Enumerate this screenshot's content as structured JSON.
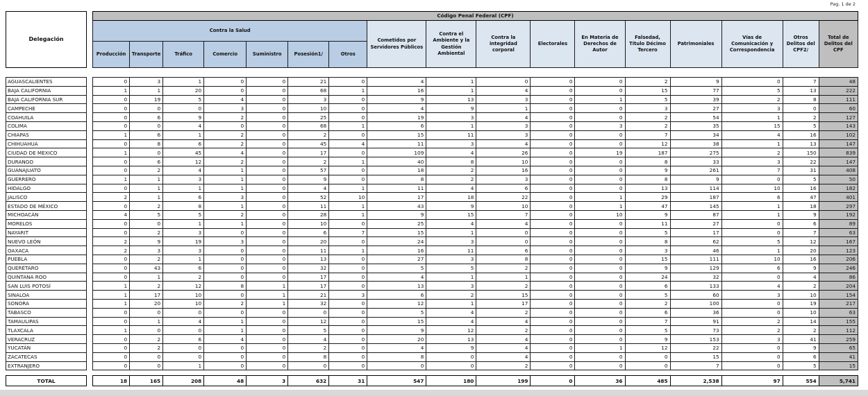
{
  "page": {
    "pagination": "Pag. 1 de 2"
  },
  "colors": {
    "title_band_gray": "#bfbfbf",
    "salud_header_blue": "#b9cde4",
    "other_header_light_blue": "#dce6f1",
    "total_column_gray": "#c0c0c0",
    "bottom_strip_gray": "#d9d9d9"
  },
  "table": {
    "title": "Código Penal Federal (CPF)",
    "delegacion_header": "Delegación",
    "group_header": "Contra la Salud",
    "salud_columns": [
      "Producción",
      "Transporte",
      "Tráfico",
      "Comercio",
      "Suministro",
      "Posesión1/",
      "Otros"
    ],
    "other_columns": [
      "Cometidos por Servidores Públicos",
      "Contra el Ambiente y la Gestión Ambiental",
      "Contra la integridad corporal",
      "Electorales",
      "En Materia de Derechos de Autor",
      "Falsedad, Título Décimo Tercero",
      "Patrimoniales",
      "Vías de Comunicación y Correspondencia",
      "Otros Delitos del CPF2/",
      "Total de Delitos del CPF"
    ],
    "rows": [
      {
        "name": "AGUASCALIENTES",
        "values": [
          0,
          3,
          1,
          0,
          0,
          21,
          0,
          4,
          1,
          0,
          0,
          0,
          2,
          9,
          0,
          7,
          48
        ]
      },
      {
        "name": "BAJA CALIFORNIA",
        "values": [
          1,
          1,
          20,
          0,
          0,
          68,
          1,
          16,
          1,
          4,
          0,
          0,
          15,
          77,
          5,
          13,
          222
        ]
      },
      {
        "name": "BAJA CALIFORNIA SUR",
        "values": [
          0,
          19,
          5,
          4,
          0,
          3,
          0,
          9,
          13,
          3,
          0,
          1,
          5,
          39,
          2,
          8,
          111
        ]
      },
      {
        "name": "CAMPECHE",
        "values": [
          0,
          0,
          0,
          3,
          0,
          10,
          0,
          4,
          9,
          1,
          0,
          0,
          3,
          27,
          3,
          0,
          60
        ]
      },
      {
        "name": "COAHUILA",
        "values": [
          0,
          6,
          9,
          2,
          0,
          25,
          0,
          19,
          3,
          4,
          0,
          0,
          2,
          54,
          1,
          2,
          127
        ]
      },
      {
        "name": "COLIMA",
        "values": [
          0,
          0,
          4,
          0,
          0,
          68,
          1,
          6,
          1,
          3,
          0,
          3,
          2,
          35,
          15,
          5,
          143
        ]
      },
      {
        "name": "CHIAPAS",
        "values": [
          1,
          6,
          1,
          2,
          0,
          2,
          0,
          15,
          11,
          3,
          0,
          0,
          7,
          34,
          4,
          16,
          102
        ]
      },
      {
        "name": "CHIHUAHUA",
        "values": [
          0,
          8,
          6,
          2,
          0,
          45,
          4,
          11,
          3,
          4,
          0,
          0,
          12,
          38,
          1,
          13,
          147
        ]
      },
      {
        "name": "CIUDAD DE MEXICO",
        "values": [
          1,
          0,
          45,
          4,
          0,
          17,
          0,
          109,
          4,
          26,
          0,
          19,
          187,
          275,
          2,
          150,
          839
        ]
      },
      {
        "name": "DURANGO",
        "values": [
          0,
          6,
          12,
          2,
          0,
          2,
          1,
          40,
          8,
          10,
          0,
          0,
          8,
          33,
          3,
          22,
          147
        ]
      },
      {
        "name": "GUANAJUATO",
        "values": [
          0,
          2,
          4,
          1,
          0,
          57,
          0,
          18,
          2,
          16,
          0,
          0,
          9,
          261,
          7,
          31,
          408
        ]
      },
      {
        "name": "GUERRERO",
        "values": [
          1,
          1,
          3,
          1,
          0,
          9,
          0,
          8,
          2,
          3,
          0,
          0,
          8,
          9,
          0,
          5,
          50
        ]
      },
      {
        "name": "HIDALGO",
        "values": [
          0,
          1,
          1,
          1,
          0,
          4,
          1,
          11,
          4,
          6,
          0,
          0,
          13,
          114,
          10,
          16,
          182
        ]
      },
      {
        "name": "JALISCO",
        "values": [
          2,
          1,
          6,
          3,
          0,
          52,
          10,
          17,
          18,
          22,
          0,
          1,
          29,
          187,
          6,
          47,
          401
        ]
      },
      {
        "name": "ESTADO DE MÉXICO",
        "values": [
          0,
          2,
          8,
          1,
          0,
          11,
          1,
          43,
          9,
          10,
          0,
          1,
          47,
          145,
          1,
          18,
          297
        ]
      },
      {
        "name": "MICHOACÁN",
        "values": [
          4,
          5,
          5,
          2,
          0,
          28,
          1,
          9,
          15,
          7,
          0,
          10,
          9,
          87,
          1,
          9,
          192
        ]
      },
      {
        "name": "MORELOS",
        "values": [
          0,
          0,
          1,
          1,
          0,
          10,
          0,
          25,
          4,
          4,
          0,
          0,
          11,
          27,
          0,
          6,
          89
        ]
      },
      {
        "name": "NAYARIT",
        "values": [
          0,
          2,
          3,
          0,
          0,
          6,
          7,
          15,
          1,
          0,
          0,
          0,
          5,
          17,
          0,
          7,
          63
        ]
      },
      {
        "name": "NUEVO LEÓN",
        "values": [
          2,
          9,
          19,
          3,
          0,
          20,
          0,
          24,
          3,
          0,
          0,
          0,
          8,
          62,
          5,
          12,
          167
        ]
      },
      {
        "name": "OAXACA",
        "values": [
          2,
          3,
          3,
          0,
          0,
          11,
          1,
          16,
          11,
          6,
          0,
          0,
          3,
          46,
          1,
          20,
          123
        ]
      },
      {
        "name": "PUEBLA",
        "values": [
          0,
          2,
          1,
          0,
          0,
          13,
          0,
          27,
          3,
          8,
          0,
          0,
          15,
          111,
          10,
          16,
          206
        ]
      },
      {
        "name": "QUERÉTARO",
        "values": [
          0,
          43,
          6,
          0,
          0,
          32,
          0,
          5,
          5,
          2,
          0,
          0,
          9,
          129,
          6,
          9,
          246
        ]
      },
      {
        "name": "QUINTANA ROO",
        "values": [
          0,
          1,
          2,
          0,
          0,
          17,
          0,
          4,
          1,
          1,
          0,
          0,
          24,
          32,
          0,
          4,
          86
        ]
      },
      {
        "name": "SAN LUIS POTOSÍ",
        "values": [
          1,
          2,
          12,
          8,
          1,
          17,
          0,
          13,
          3,
          2,
          0,
          0,
          6,
          133,
          4,
          2,
          204
        ]
      },
      {
        "name": "SINALOA",
        "values": [
          1,
          17,
          10,
          0,
          1,
          21,
          3,
          6,
          2,
          15,
          0,
          0,
          5,
          60,
          3,
          10,
          154
        ]
      },
      {
        "name": "SONORA",
        "values": [
          1,
          20,
          10,
          2,
          1,
          32,
          0,
          12,
          1,
          17,
          0,
          0,
          2,
          100,
          0,
          19,
          217
        ]
      },
      {
        "name": "TABASCO",
        "values": [
          0,
          0,
          0,
          0,
          0,
          0,
          0,
          5,
          4,
          2,
          0,
          0,
          6,
          36,
          0,
          10,
          63
        ]
      },
      {
        "name": "TAMAULIPAS",
        "values": [
          0,
          1,
          4,
          1,
          0,
          12,
          0,
          15,
          4,
          4,
          0,
          0,
          7,
          91,
          2,
          14,
          155
        ]
      },
      {
        "name": "TLAXCALA",
        "values": [
          1,
          0,
          0,
          1,
          0,
          5,
          0,
          9,
          12,
          2,
          0,
          0,
          5,
          73,
          2,
          2,
          112
        ]
      },
      {
        "name": "VERACRUZ",
        "values": [
          0,
          2,
          6,
          4,
          0,
          4,
          0,
          20,
          13,
          4,
          0,
          0,
          9,
          153,
          3,
          41,
          259
        ]
      },
      {
        "name": "YUCATÁN",
        "values": [
          0,
          2,
          0,
          0,
          0,
          2,
          0,
          4,
          9,
          4,
          0,
          1,
          12,
          22,
          0,
          9,
          65
        ]
      },
      {
        "name": "ZACATECAS",
        "values": [
          0,
          0,
          0,
          0,
          0,
          8,
          0,
          8,
          0,
          4,
          0,
          0,
          0,
          15,
          0,
          6,
          41
        ]
      },
      {
        "name": "EXTRANJERO",
        "values": [
          0,
          0,
          1,
          0,
          0,
          0,
          0,
          0,
          0,
          2,
          0,
          0,
          0,
          7,
          0,
          5,
          15
        ]
      }
    ],
    "total_label": "TOTAL",
    "total_values": [
      "18",
      "165",
      "208",
      "48",
      "3",
      "632",
      "31",
      "547",
      "180",
      "199",
      "0",
      "36",
      "485",
      "2,538",
      "97",
      "554",
      "5,741"
    ]
  }
}
